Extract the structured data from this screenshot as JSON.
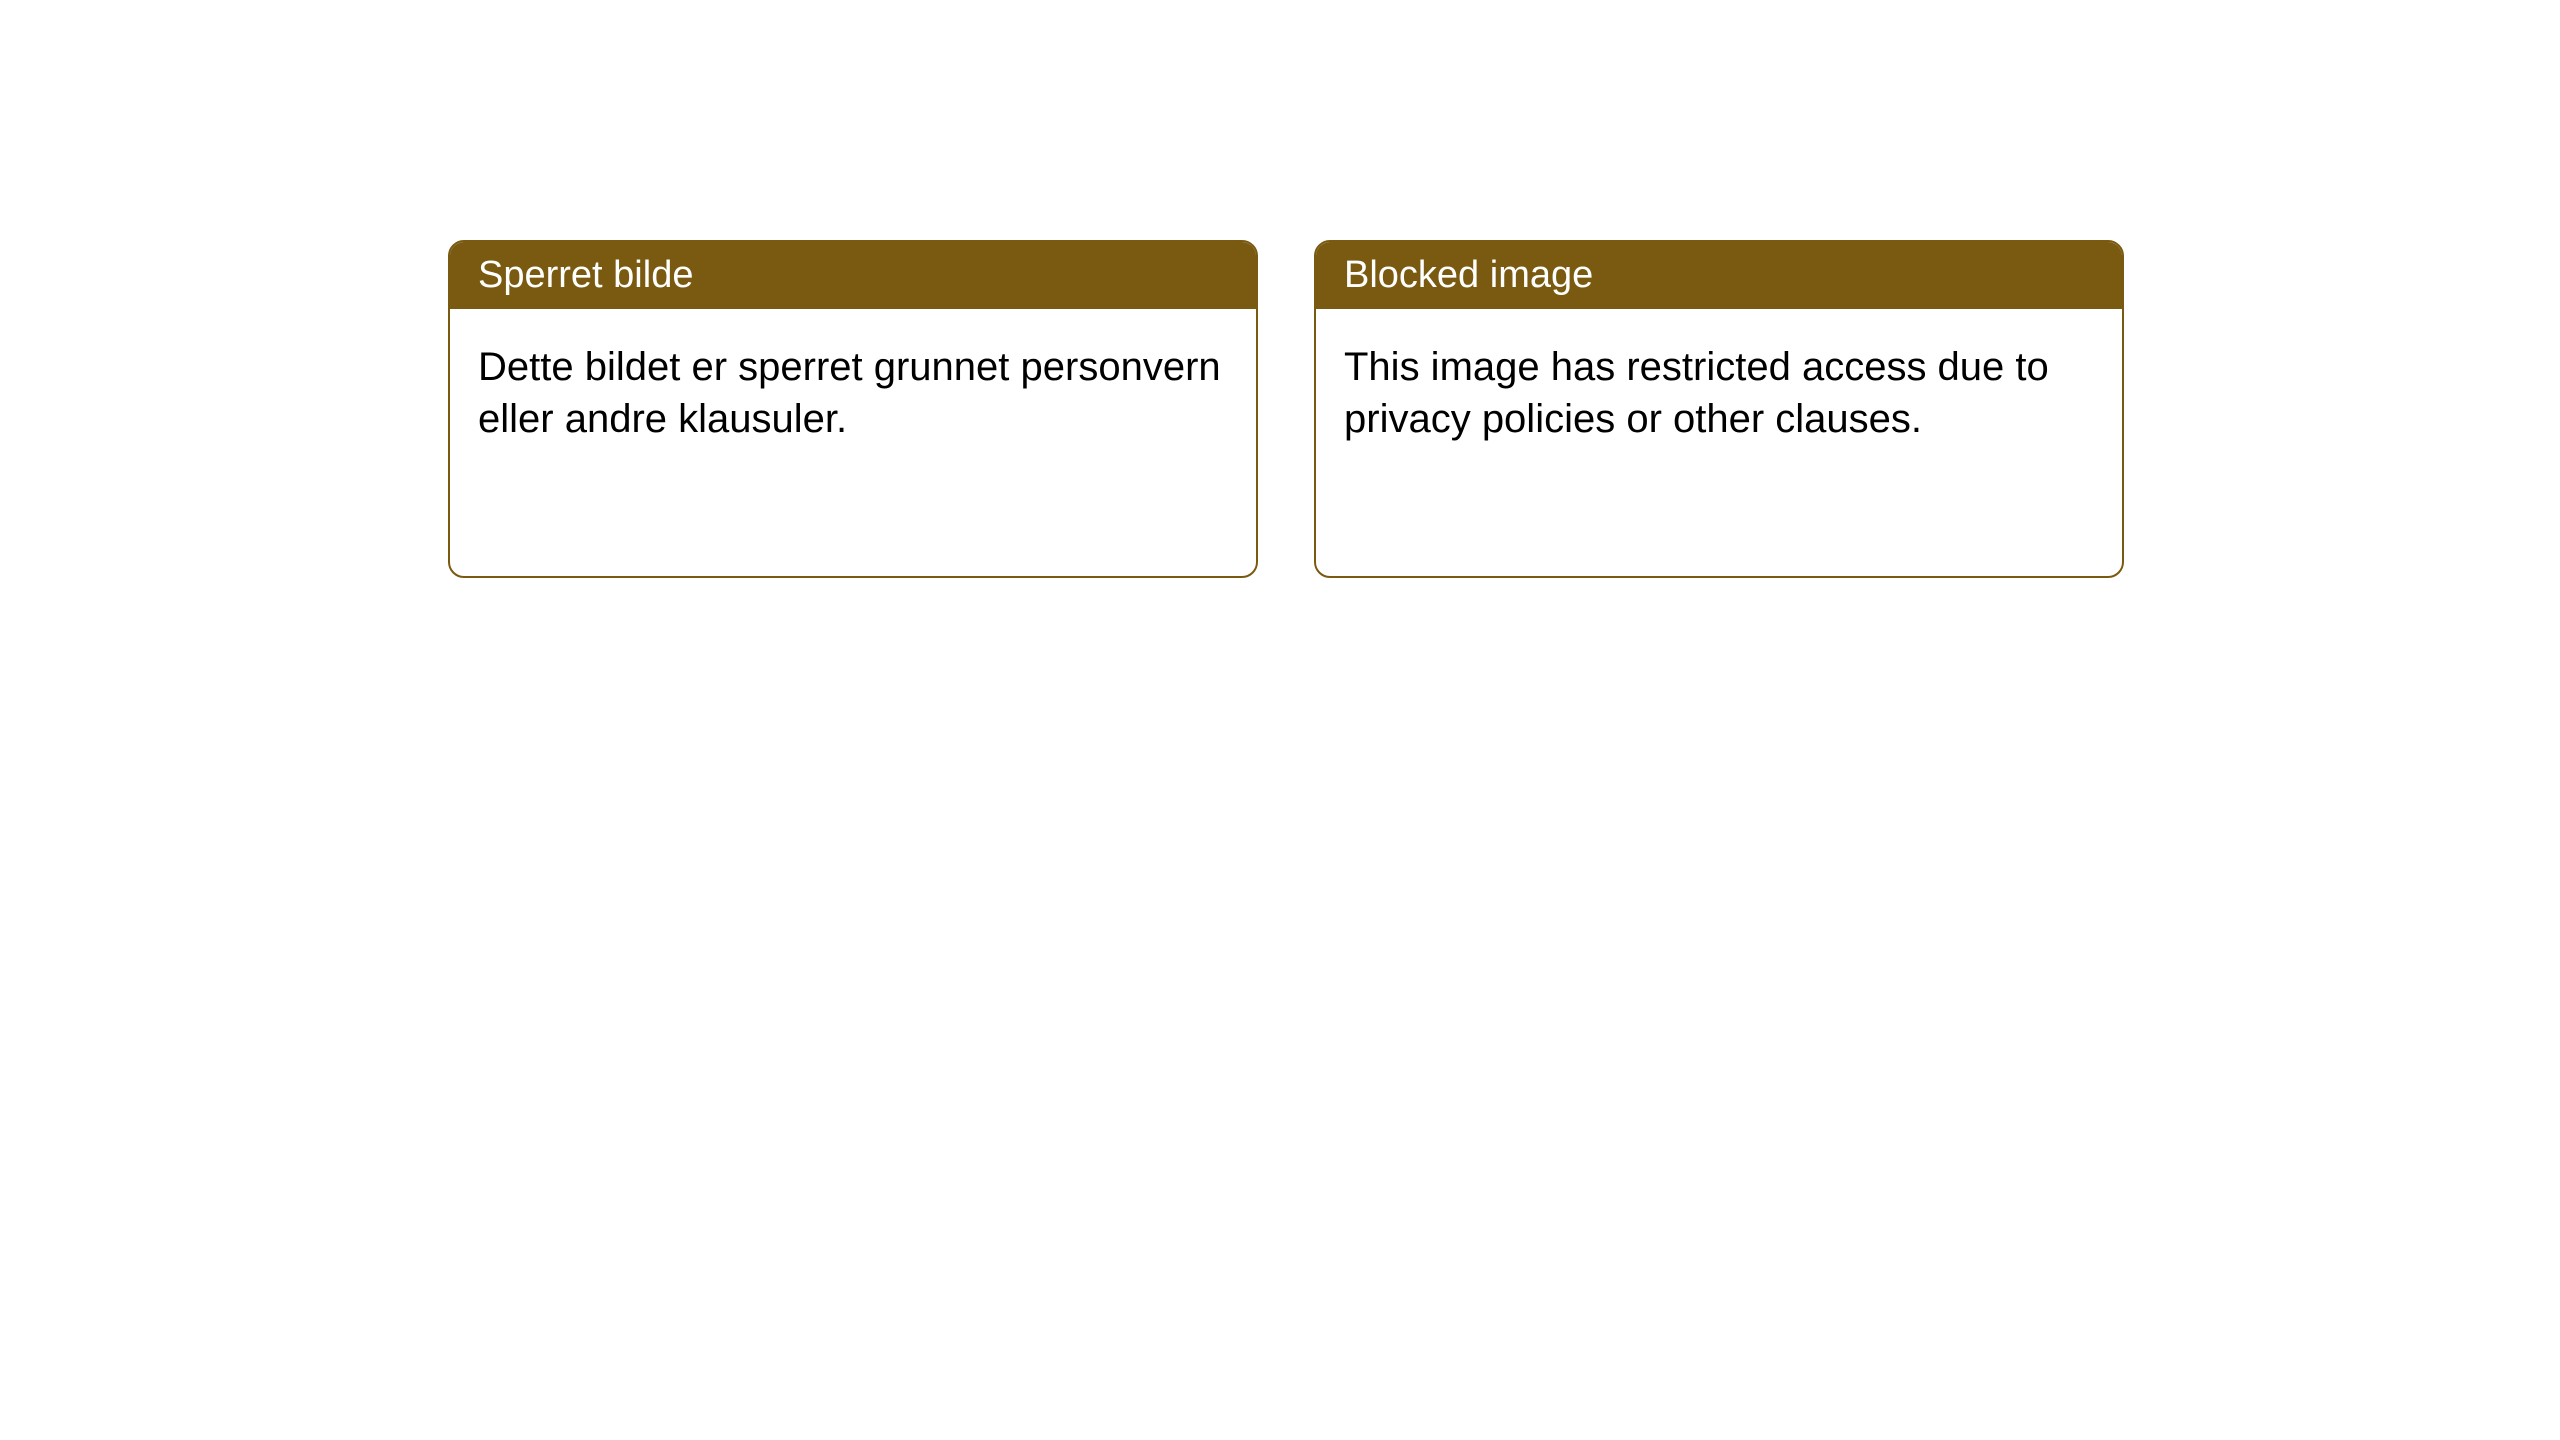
{
  "colors": {
    "header_bg": "#7a5a10",
    "header_text": "#ffffff",
    "border": "#7a5a10",
    "body_bg": "#ffffff",
    "body_text": "#000000"
  },
  "cards": [
    {
      "title": "Sperret bilde",
      "body": "Dette bildet er sperret grunnet personvern eller andre klausuler."
    },
    {
      "title": "Blocked image",
      "body": "This image has restricted access due to privacy policies or other clauses."
    }
  ]
}
